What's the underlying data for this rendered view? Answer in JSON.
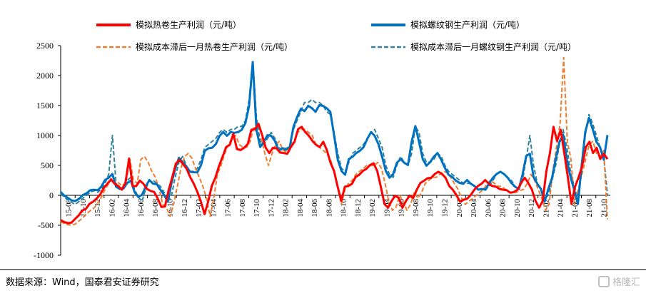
{
  "chart_data": {
    "type": "line",
    "ylim": [
      -1000,
      2500
    ],
    "yticks": [
      -1000,
      -500,
      0,
      500,
      1000,
      1500,
      2000,
      2500
    ],
    "xticks": [
      "15-08",
      "15-10",
      "15-12",
      "16-02",
      "16-04",
      "16-06",
      "16-08",
      "16-10",
      "16-12",
      "17-02",
      "17-04",
      "17-06",
      "17-08",
      "17-10",
      "17-12",
      "18-02",
      "18-04",
      "18-06",
      "18-08",
      "18-10",
      "18-12",
      "19-02",
      "19-04",
      "19-06",
      "19-08",
      "19-10",
      "19-12",
      "20-02",
      "20-04",
      "20-06",
      "20-08",
      "20-10",
      "20-12",
      "21-02",
      "21-04",
      "21-06",
      "21-08",
      "21-10"
    ],
    "legend_position": "top",
    "series": [
      {
        "name": "模拟热卷生产利润（元/吨）",
        "color": "#ff0000",
        "style": "solid",
        "values": [
          -420,
          -440,
          -470,
          -450,
          -400,
          -330,
          -260,
          -220,
          -150,
          -100,
          -60,
          20,
          120,
          200,
          260,
          200,
          150,
          100,
          200,
          620,
          150,
          160,
          240,
          200,
          100,
          80,
          50,
          -50,
          -200,
          -180,
          80,
          300,
          520,
          600,
          520,
          450,
          300,
          200,
          50,
          -100,
          -320,
          -100,
          150,
          300,
          480,
          650,
          800,
          850,
          1020,
          780,
          750,
          800,
          850,
          1100,
          1100,
          1200,
          1000,
          800,
          700,
          800,
          780,
          720,
          700,
          700,
          800,
          900,
          1100,
          1150,
          1050,
          1000,
          900,
          850,
          800,
          900,
          750,
          550,
          400,
          150,
          -100,
          150,
          150,
          200,
          300,
          350,
          400,
          450,
          500,
          540,
          400,
          150,
          -150,
          -200,
          -100,
          0,
          -50,
          -200,
          -100,
          0,
          -50,
          100,
          200,
          250,
          280,
          300,
          350,
          400,
          350,
          300,
          150,
          100,
          0,
          -100,
          -80,
          -50,
          0,
          100,
          150,
          200,
          250,
          200,
          150,
          150,
          100,
          100,
          80,
          50,
          50,
          100,
          200,
          300,
          200,
          100,
          -100,
          -200,
          -100,
          400,
          700,
          1150,
          900,
          1100,
          700,
          300,
          -150,
          150,
          300,
          500,
          800,
          900,
          700,
          800,
          600,
          700,
          600
        ]
      },
      {
        "name": "模拟螺纹钢生产利润（元/吨）",
        "color": "#0070c0",
        "style": "solid",
        "values": [
          50,
          0,
          -50,
          -80,
          -100,
          -50,
          0,
          40,
          80,
          100,
          80,
          150,
          250,
          300,
          350,
          150,
          100,
          120,
          200,
          250,
          50,
          -20,
          0,
          150,
          250,
          200,
          180,
          100,
          0,
          -100,
          200,
          450,
          620,
          560,
          480,
          400,
          380,
          390,
          500,
          750,
          780,
          800,
          850,
          1000,
          1050,
          1000,
          1050,
          1050,
          1050,
          1100,
          1200,
          1500,
          2220,
          1100,
          800,
          900,
          1000,
          1000,
          900,
          750,
          780,
          780,
          800,
          1150,
          1300,
          1450,
          1400,
          1500,
          1450,
          1400,
          1500,
          1500,
          1450,
          1400,
          1000,
          600,
          400,
          350,
          600,
          650,
          700,
          750,
          800,
          950,
          1050,
          1000,
          850,
          650,
          400,
          300,
          350,
          550,
          600,
          550,
          500,
          900,
          1150,
          900,
          600,
          500,
          550,
          650,
          700,
          600,
          450,
          350,
          300,
          250,
          200,
          200,
          250,
          200,
          150,
          100,
          100,
          100,
          200,
          300,
          350,
          400,
          350,
          300,
          200,
          150,
          100,
          350,
          650,
          700,
          300,
          200,
          100,
          -100,
          100,
          300,
          600,
          900,
          1000,
          600,
          300,
          100,
          -150,
          500,
          1050,
          1300,
          1100,
          900,
          800,
          600,
          1000
        ]
      },
      {
        "name": "模拟成本滞后一月热卷生产利润（元/吨）",
        "color": "#ed7d31",
        "style": "dashed",
        "values": [
          -440,
          -470,
          -490,
          -500,
          -480,
          -430,
          -380,
          -320,
          -260,
          -220,
          -150,
          -50,
          80,
          180,
          300,
          260,
          200,
          150,
          250,
          600,
          250,
          200,
          600,
          650,
          550,
          400,
          300,
          100,
          -150,
          -200,
          -350,
          -150,
          150,
          450,
          650,
          700,
          620,
          450,
          300,
          150,
          -50,
          -350,
          -50,
          350,
          500,
          700,
          850,
          950,
          1000,
          850,
          800,
          800,
          900,
          1150,
          1000,
          950,
          700,
          500,
          700,
          850,
          900,
          750,
          720,
          850,
          900,
          1050,
          1100,
          1100,
          1050,
          1000,
          850,
          800,
          750,
          700,
          600,
          400,
          150,
          -150,
          100,
          200,
          250,
          350,
          400,
          450,
          500,
          500,
          500,
          550,
          450,
          200,
          -100,
          -250,
          -200,
          0,
          -100,
          -250,
          -150,
          50,
          -50,
          50,
          200,
          250,
          300,
          300,
          350,
          400,
          380,
          300,
          200,
          100,
          -50,
          -150,
          -100,
          -50,
          0,
          50,
          100,
          200,
          250,
          200,
          150,
          150,
          100,
          50,
          50,
          50,
          80,
          100,
          200,
          350,
          250,
          100,
          -50,
          -250,
          -150,
          400,
          800,
          1200,
          2300,
          900,
          600,
          -150,
          100,
          350,
          600,
          850,
          900,
          700,
          650,
          750,
          -400
        ]
      },
      {
        "name": "模拟成本滞后一月螺纹钢生产利润（元/吨）",
        "color": "#31849b",
        "style": "dashed",
        "values": [
          30,
          -30,
          -80,
          -120,
          -150,
          -100,
          -50,
          0,
          50,
          80,
          50,
          100,
          200,
          350,
          1000,
          200,
          100,
          150,
          250,
          300,
          100,
          -30,
          -100,
          100,
          250,
          250,
          200,
          150,
          50,
          -100,
          0,
          300,
          550,
          650,
          500,
          400,
          400,
          450,
          600,
          800,
          850,
          900,
          950,
          1050,
          1100,
          1050,
          1100,
          1100,
          1150,
          1150,
          1250,
          1600,
          2250,
          1300,
          900,
          850,
          950,
          1050,
          950,
          800,
          750,
          750,
          800,
          1100,
          1250,
          1400,
          1550,
          1550,
          1600,
          1550,
          1550,
          1500,
          1400,
          1350,
          1050,
          700,
          450,
          400,
          550,
          700,
          750,
          800,
          850,
          950,
          1050,
          1100,
          950,
          800,
          500,
          350,
          300,
          500,
          650,
          550,
          500,
          700,
          1150,
          1050,
          700,
          550,
          550,
          600,
          700,
          650,
          500,
          400,
          350,
          300,
          250,
          200,
          200,
          200,
          150,
          100,
          100,
          100,
          150,
          250,
          350,
          400,
          350,
          300,
          250,
          150,
          100,
          250,
          600,
          1000,
          500,
          200,
          100,
          -50,
          0,
          250,
          500,
          850,
          1100,
          800,
          400,
          150,
          0,
          400,
          1000,
          1350,
          1200,
          1000,
          800,
          650,
          0
        ]
      }
    ]
  },
  "source": "数据来源：Wind，国泰君安证券研究",
  "watermark": "格隆汇"
}
